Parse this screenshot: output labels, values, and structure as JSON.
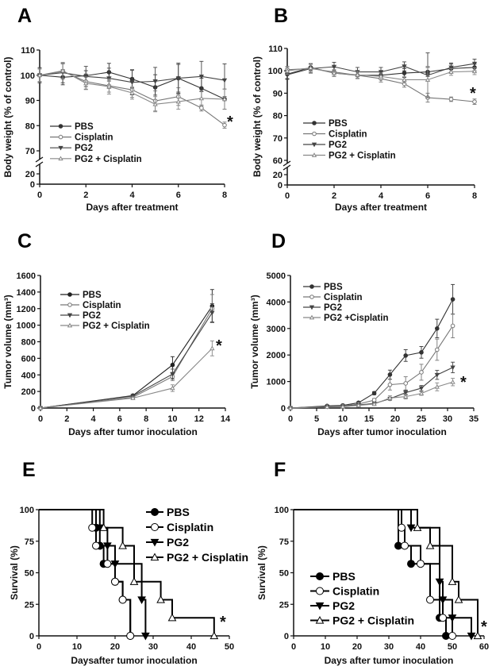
{
  "chart_data": [
    {
      "panel": "A",
      "type": "line",
      "xlabel": "Days after treatment",
      "ylabel": "Body weight (% of control)",
      "xlim": [
        0,
        8
      ],
      "ylim": [
        70,
        110
      ],
      "y_break_ticks": [
        20,
        0
      ],
      "xticks": [
        0,
        2,
        4,
        6,
        8
      ],
      "yticks": [
        70,
        80,
        90,
        100,
        110
      ],
      "x": [
        0,
        1,
        2,
        3,
        4,
        5,
        6,
        7,
        8
      ],
      "series": [
        {
          "name": "PBS",
          "marker": "filled-circle",
          "color": "#333333",
          "values": [
            100,
            99.2,
            99.8,
            101.2,
            98.5,
            95.2,
            98.8,
            94.8,
            90.5
          ],
          "error": [
            2.5,
            3,
            2,
            3.5,
            3.5,
            5,
            5.5,
            4,
            4
          ]
        },
        {
          "name": "Cisplatin",
          "marker": "open-circle",
          "color": "#777777",
          "values": [
            100,
            101.5,
            97.5,
            95.8,
            94.2,
            89.8,
            91.5,
            87,
            80.2
          ],
          "error": [
            3,
            3,
            3,
            2.5,
            3,
            4,
            3.5,
            1.2,
            1.2
          ]
        },
        {
          "name": "PG2",
          "marker": "filled-down-triangle",
          "color": "#444444",
          "values": [
            100,
            101,
            99.5,
            98.8,
            97.2,
            97.6,
            98.8,
            99.5,
            98
          ],
          "error": [
            3,
            4,
            4,
            4,
            5,
            5.5,
            6,
            6,
            6.5
          ]
        },
        {
          "name": "PG2 + Cisplatin",
          "marker": "open-triangle",
          "color": "#888888",
          "values": [
            100,
            101.8,
            96.8,
            95.5,
            93,
            88.5,
            89.5,
            90.8,
            90.5
          ],
          "error": [
            2.5,
            3,
            2.5,
            3,
            2.5,
            3,
            3,
            3,
            4
          ]
        }
      ],
      "annotation": "*"
    },
    {
      "panel": "B",
      "type": "line",
      "xlabel": "Days after treatment",
      "ylabel": "Body weight (% of control)",
      "xlim": [
        0,
        8
      ],
      "ylim": [
        60,
        110
      ],
      "y_break_ticks": [
        20,
        0
      ],
      "xticks": [
        0,
        2,
        4,
        6,
        8
      ],
      "yticks": [
        60,
        70,
        80,
        90,
        100,
        110
      ],
      "x": [
        0,
        1,
        2,
        3,
        4,
        5,
        6,
        7,
        8
      ],
      "series": [
        {
          "name": "PBS",
          "marker": "filled-circle",
          "color": "#333333",
          "values": [
            98.5,
            101.5,
            99,
            98,
            98,
            99,
            99.5,
            101,
            101.5
          ],
          "error": [
            2,
            1.5,
            1.5,
            1.5,
            1.5,
            2,
            2,
            2,
            1.5
          ]
        },
        {
          "name": "Cisplatin",
          "marker": "open-circle",
          "color": "#777777",
          "values": [
            100.5,
            101,
            99.5,
            98,
            96.5,
            94.2,
            88,
            87.3,
            86.2
          ],
          "error": [
            1.5,
            2,
            2,
            1.5,
            1.5,
            1.5,
            2,
            1,
            1.2
          ]
        },
        {
          "name": "PG2",
          "marker": "filled-down-triangle",
          "color": "#444444",
          "values": [
            98.2,
            101,
            101.8,
            99.5,
            99.5,
            102,
            98,
            101.5,
            103.2
          ],
          "error": [
            2,
            2,
            2,
            2,
            2,
            2,
            10,
            2,
            2
          ]
        },
        {
          "name": "PG2 + Cisplatin",
          "marker": "open-triangle",
          "color": "#888888",
          "values": [
            100,
            101.3,
            99,
            98.2,
            97.5,
            96,
            96,
            99.5,
            99.8
          ],
          "error": [
            1.5,
            2,
            1.5,
            1.5,
            1.5,
            1.5,
            6,
            1.5,
            1.5
          ]
        }
      ],
      "annotation": "*"
    },
    {
      "panel": "C",
      "type": "line",
      "xlabel": "Days after tumor inoculation",
      "ylabel": "Tumor volume (mm³)",
      "xlim": [
        0,
        14
      ],
      "ylim": [
        0,
        1600
      ],
      "xticks": [
        0,
        2,
        4,
        6,
        8,
        10,
        12,
        14
      ],
      "yticks": [
        0,
        200,
        400,
        600,
        800,
        1000,
        1200,
        1400,
        1600
      ],
      "x": [
        0,
        7,
        10,
        13
      ],
      "series": [
        {
          "name": "PBS",
          "marker": "filled-circle",
          "color": "#222222",
          "values": [
            0,
            150,
            520,
            1230
          ],
          "error": [
            0,
            15,
            100,
            200
          ]
        },
        {
          "name": "Cisplatin",
          "marker": "open-circle",
          "color": "#777777",
          "values": [
            0,
            130,
            380,
            1200
          ],
          "error": [
            0,
            15,
            50,
            170
          ]
        },
        {
          "name": "PG2",
          "marker": "filled-down-triangle",
          "color": "#444444",
          "values": [
            0,
            145,
            410,
            1150
          ],
          "error": [
            0,
            15,
            60,
            110
          ]
        },
        {
          "name": "PG2 + Cisplatin",
          "marker": "open-triangle",
          "color": "#888888",
          "values": [
            0,
            120,
            240,
            720
          ],
          "error": [
            0,
            10,
            40,
            90
          ]
        }
      ],
      "annotation": "*"
    },
    {
      "panel": "D",
      "type": "line",
      "xlabel": "Days after tumor inoculation",
      "ylabel": "Tumor volume (mm³)",
      "xlim": [
        0,
        35
      ],
      "ylim": [
        0,
        5000
      ],
      "xticks": [
        0,
        5,
        10,
        15,
        20,
        25,
        30,
        35
      ],
      "yticks": [
        0,
        1000,
        2000,
        3000,
        4000,
        5000
      ],
      "x": [
        0,
        7,
        10,
        13,
        16,
        19,
        22,
        25,
        28,
        31
      ],
      "series": [
        {
          "name": "PBS",
          "marker": "filled-circle",
          "color": "#333333",
          "values": [
            0,
            80,
            100,
            200,
            560,
            1260,
            1980,
            2100,
            3000,
            4100
          ],
          "error": [
            0,
            20,
            30,
            40,
            60,
            170,
            220,
            220,
            350,
            560
          ]
        },
        {
          "name": "Cisplatin",
          "marker": "open-circle",
          "color": "#777777",
          "values": [
            0,
            60,
            80,
            150,
            300,
            880,
            930,
            1350,
            2200,
            3100
          ],
          "error": [
            0,
            20,
            20,
            40,
            60,
            200,
            250,
            300,
            400,
            450
          ]
        },
        {
          "name": "PG2",
          "marker": "filled-down-triangle",
          "color": "#444444",
          "values": [
            0,
            50,
            60,
            120,
            170,
            350,
            580,
            750,
            1250,
            1530
          ],
          "error": [
            0,
            15,
            20,
            30,
            40,
            60,
            90,
            100,
            170,
            200
          ]
        },
        {
          "name": "PG2 +Cisplatin",
          "marker": "open-triangle",
          "color": "#888888",
          "values": [
            0,
            40,
            50,
            100,
            150,
            380,
            430,
            550,
            800,
            980
          ],
          "error": [
            0,
            15,
            20,
            30,
            40,
            80,
            90,
            70,
            150,
            140
          ]
        }
      ],
      "annotation": "*"
    },
    {
      "panel": "E",
      "type": "survival",
      "xlabel": "Daysafter tumor inoculation",
      "ylabel": "Survival (%)",
      "xlim": [
        0,
        50
      ],
      "ylim": [
        0,
        100
      ],
      "xticks": [
        0,
        10,
        20,
        30,
        40,
        50
      ],
      "yticks": [
        0,
        25,
        50,
        75,
        100
      ],
      "series": [
        {
          "name": "PBS",
          "marker": "filled-circle",
          "steps": [
            [
              15,
              85.7
            ],
            [
              16,
              71.4
            ],
            [
              17,
              57.1
            ],
            [
              20,
              42.9
            ],
            [
              22,
              28.6
            ],
            [
              24,
              0
            ]
          ]
        },
        {
          "name": "Cisplatin",
          "marker": "open-circle",
          "steps": [
            [
              14,
              85.7
            ],
            [
              15,
              71.4
            ],
            [
              18,
              57.1
            ],
            [
              20,
              42.9
            ],
            [
              22,
              28.6
            ],
            [
              24,
              0
            ]
          ]
        },
        {
          "name": "PG2",
          "marker": "filled-down-triangle",
          "steps": [
            [
              16,
              85.7
            ],
            [
              18,
              71.4
            ],
            [
              20,
              57.1
            ],
            [
              27,
              28.6
            ],
            [
              28,
              0
            ]
          ]
        },
        {
          "name": "PG2 + Cisplatin",
          "marker": "open-triangle",
          "steps": [
            [
              17,
              85.7
            ],
            [
              22,
              71.4
            ],
            [
              25,
              42.9
            ],
            [
              32,
              28.6
            ],
            [
              35,
              14.3
            ],
            [
              46,
              0
            ]
          ]
        }
      ],
      "annotation": "*"
    },
    {
      "panel": "F",
      "type": "survival",
      "xlabel": "Days after tumor inoculation",
      "ylabel": "Survival (%)",
      "xlim": [
        0,
        60
      ],
      "ylim": [
        0,
        100
      ],
      "xticks": [
        0,
        10,
        20,
        30,
        40,
        50,
        60
      ],
      "yticks": [
        0,
        25,
        50,
        75,
        100
      ],
      "series": [
        {
          "name": "PBS",
          "marker": "filled-circle",
          "steps": [
            [
              33,
              71.4
            ],
            [
              37,
              57.1
            ],
            [
              46,
              14.3
            ],
            [
              48,
              0
            ]
          ]
        },
        {
          "name": "Cisplatin",
          "marker": "open-circle",
          "steps": [
            [
              34,
              85.7
            ],
            [
              35,
              71.4
            ],
            [
              40,
              57.1
            ],
            [
              43,
              28.6
            ],
            [
              47,
              14.3
            ],
            [
              50,
              0
            ]
          ]
        },
        {
          "name": "PG2",
          "marker": "filled-down-triangle",
          "steps": [
            [
              37,
              85.7
            ],
            [
              46,
              42.9
            ],
            [
              47,
              28.6
            ],
            [
              50,
              14.3
            ],
            [
              56,
              0
            ]
          ]
        },
        {
          "name": "PG2 + Cisplatin",
          "marker": "open-triangle",
          "steps": [
            [
              39,
              85.7
            ],
            [
              43,
              71.4
            ],
            [
              50,
              42.9
            ],
            [
              52,
              28.6
            ],
            [
              58,
              0
            ]
          ]
        }
      ],
      "annotation": "*"
    }
  ]
}
